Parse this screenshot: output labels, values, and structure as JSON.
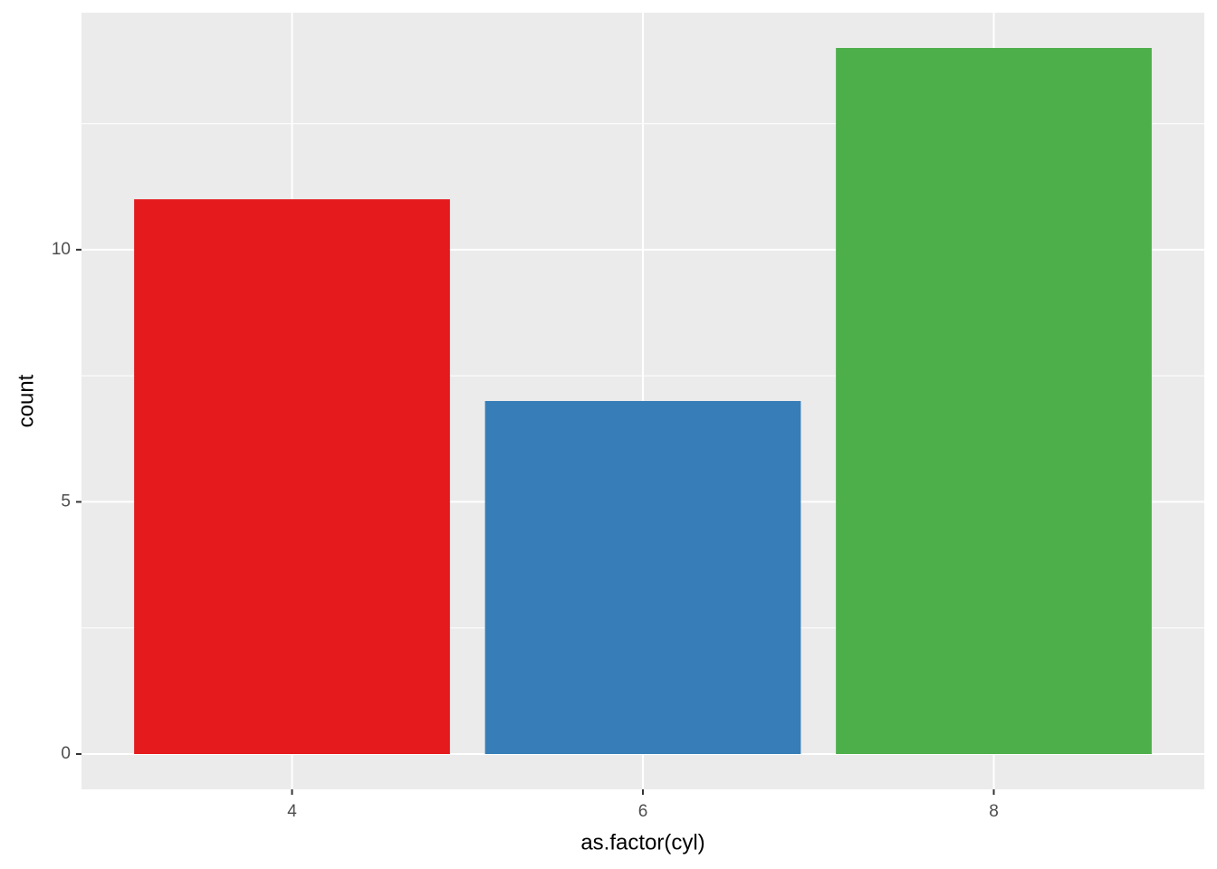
{
  "chart_data": {
    "type": "bar",
    "xlabel": "as.factor(cyl)",
    "ylabel": "count",
    "categories": [
      "4",
      "6",
      "8"
    ],
    "values": [
      11,
      7,
      14
    ],
    "colors": [
      "#E41A1C",
      "#377EB8",
      "#4DAF4A"
    ],
    "ylim": [
      -0.7,
      14.7
    ],
    "yticks": [
      0,
      5,
      10
    ],
    "minor_yticks": [
      2.5,
      7.5,
      12.5
    ],
    "grid": true
  }
}
